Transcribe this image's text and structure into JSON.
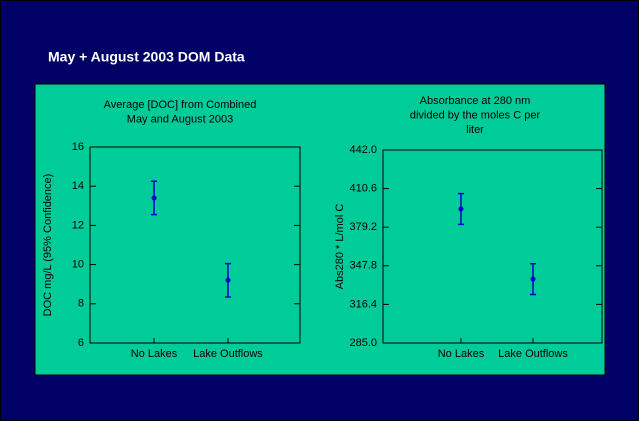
{
  "header": {
    "title": "May + August 2003 DOM Data"
  },
  "chart_data": [
    {
      "type": "errorbar",
      "title": [
        "Average [DOC] from Combined",
        "May and August 2003"
      ],
      "y_label": "DOC mg/L  (95% Confidence)",
      "categories": [
        "No Lakes",
        "Lake Outflows"
      ],
      "values": [
        13.4,
        9.2
      ],
      "errors": [
        0.85,
        0.85
      ],
      "color": "#0000cc",
      "ylim": [
        6,
        16
      ],
      "yticks": [
        6,
        8,
        10,
        12,
        14,
        16
      ]
    },
    {
      "type": "errorbar",
      "title": [
        "Absorbance at 280 nm",
        "divided by the moles C per",
        "liter"
      ],
      "y_label": "Abs280 * L/mol C",
      "categories": [
        "No Lakes",
        "Lake Outflows"
      ],
      "values": [
        394,
        337
      ],
      "errors": [
        12.5,
        12.5
      ],
      "color": "#0000cc",
      "ylim": [
        285,
        442
      ],
      "yticks": [
        {
          "value": 285,
          "label": "285.0"
        },
        {
          "value": 316.4,
          "label": "316.4"
        },
        {
          "value": 347.8,
          "label": "347.8"
        },
        {
          "value": 379.2,
          "label": "379.2"
        },
        {
          "value": 410.6,
          "label": "410.6"
        },
        {
          "value": 442,
          "label": "442.0"
        }
      ]
    }
  ]
}
